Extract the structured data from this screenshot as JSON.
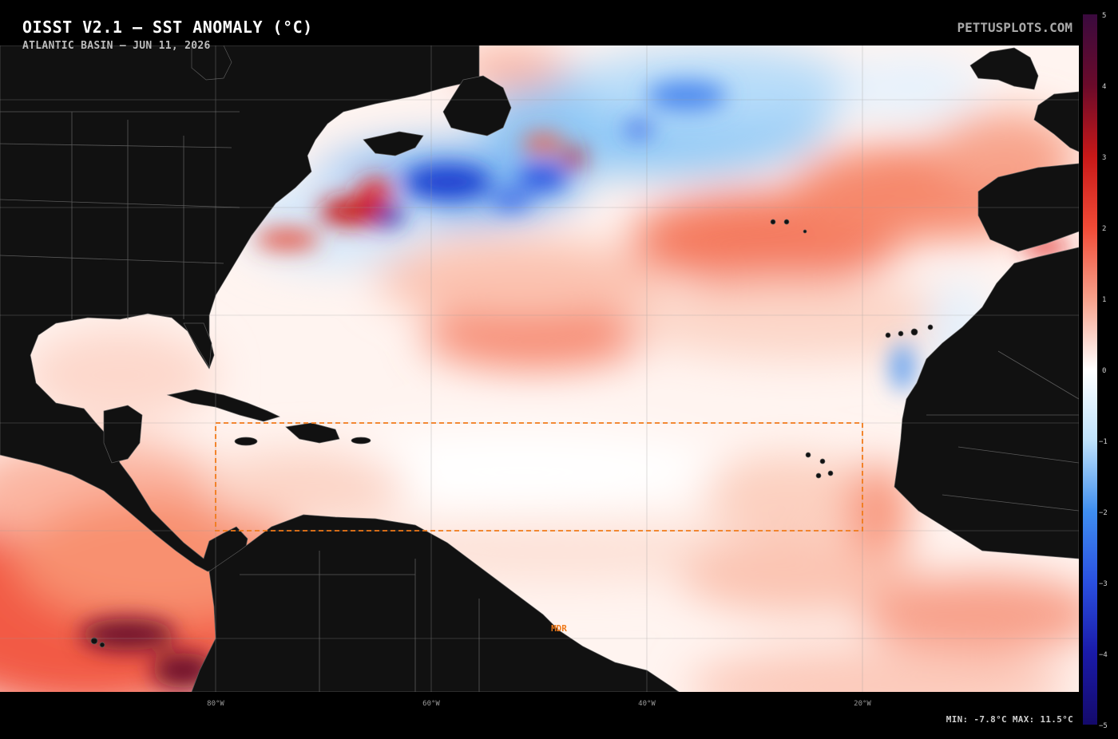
{
  "header": {
    "title": "OISST V2.1 — SST ANOMALY (°C)",
    "subtitle": "ATLANTIC BASIN — JUN 11, 2026",
    "credit": "PETTUSPLOTS.COM"
  },
  "map": {
    "lon_ticks": [
      "80°W",
      "60°W",
      "40°W",
      "20°W"
    ],
    "region_label": "MDR",
    "colors": {
      "land": "#111111",
      "borders": "#5a5a5a",
      "graticule": "#9a9a9a",
      "mdr_box": "#f07a1a",
      "ocean_neutral": "#ffffff"
    }
  },
  "colorbar": {
    "ticks": [
      "5",
      "4",
      "3",
      "2",
      "1",
      "0",
      "−1",
      "−2",
      "−3",
      "−4",
      "−5"
    ],
    "stops": [
      "#1a0a6b",
      "#2a3bd4",
      "#3f8ef0",
      "#bfe2fb",
      "#ffffff",
      "#fdd2c2",
      "#f46a4e",
      "#c81818",
      "#6a0a2a",
      "#3a0a3e"
    ]
  },
  "stats": {
    "text": "MIN: -7.8°C  MAX: 11.5°C"
  }
}
